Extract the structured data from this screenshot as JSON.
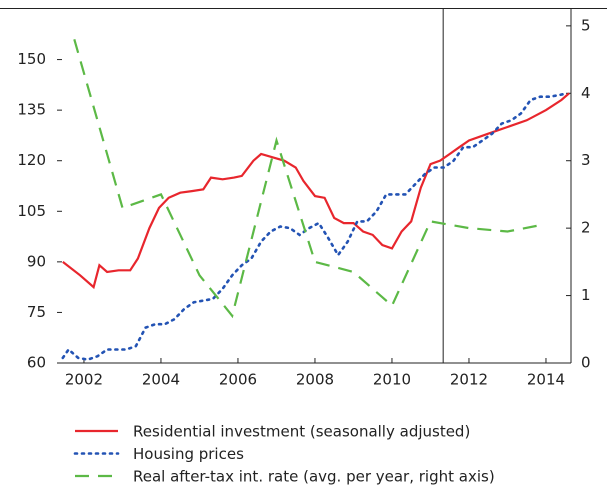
{
  "chart_data": {
    "type": "line",
    "xlim": [
      2001.3,
      2014.65
    ],
    "xticks": [
      2002,
      2004,
      2006,
      2008,
      2010,
      2012,
      2014
    ],
    "ylim": [
      60,
      165
    ],
    "yticks": [
      60,
      75,
      90,
      105,
      120,
      135,
      150
    ],
    "y2lim": [
      0,
      5.25
    ],
    "y2ticks": [
      0,
      1,
      2,
      3,
      4,
      5
    ],
    "forecast_start": 2011.33,
    "series": [
      {
        "name": "Residential investment (seasonally adjusted)",
        "color": "#e8262d",
        "dash": "solid",
        "x": [
          2001.45,
          2001.9,
          2002.25,
          2002.4,
          2002.6,
          2002.9,
          2003.2,
          2003.4,
          2003.7,
          2003.95,
          2004.2,
          2004.5,
          2004.8,
          2005.1,
          2005.3,
          2005.6,
          2005.9,
          2006.1,
          2006.4,
          2006.6,
          2006.9,
          2007.2,
          2007.5,
          2007.7,
          2008.0,
          2008.25,
          2008.5,
          2008.75,
          2009.0,
          2009.25,
          2009.5,
          2009.75,
          2010.0,
          2010.25,
          2010.5,
          2010.75,
          2011.0,
          2011.25,
          2011.5,
          2011.75,
          2012.0,
          2012.5,
          2013.0,
          2013.5,
          2014.0,
          2014.4,
          2014.6
        ],
        "values": [
          90,
          86,
          82.5,
          89,
          87,
          87.5,
          87.5,
          91,
          100,
          106,
          109,
          110.5,
          111,
          111.5,
          115,
          114.5,
          115,
          115.5,
          120,
          122,
          121,
          120,
          118,
          114,
          109.5,
          109,
          103,
          101.5,
          101.5,
          99,
          98,
          95,
          94,
          99,
          102,
          112,
          119,
          120,
          122,
          124,
          126,
          128,
          130,
          132,
          135,
          138,
          140
        ]
      },
      {
        "name": "Housing prices",
        "color": "#2353b4",
        "dash": "dotted",
        "x": [
          2001.45,
          2001.6,
          2001.85,
          2002.1,
          2002.35,
          2002.6,
          2002.85,
          2003.1,
          2003.35,
          2003.6,
          2003.85,
          2004.1,
          2004.35,
          2004.6,
          2004.85,
          2005.1,
          2005.35,
          2005.6,
          2005.85,
          2006.1,
          2006.35,
          2006.6,
          2006.85,
          2007.1,
          2007.35,
          2007.6,
          2007.85,
          2008.1,
          2008.35,
          2008.6,
          2008.85,
          2009.1,
          2009.35,
          2009.6,
          2009.85,
          2010.1,
          2010.35,
          2010.6,
          2010.85,
          2011.1,
          2011.35,
          2011.6,
          2011.85,
          2012.1,
          2012.35,
          2012.6,
          2012.85,
          2013.1,
          2013.35,
          2013.6,
          2013.85,
          2014.1,
          2014.35,
          2014.55
        ],
        "values": [
          61.5,
          64,
          61.5,
          61,
          62,
          64,
          64,
          64,
          65,
          70.5,
          71.5,
          71.5,
          73,
          76,
          78,
          78.5,
          79,
          82,
          86,
          89,
          91,
          96,
          99,
          100.5,
          100,
          98,
          100,
          101.5,
          97,
          92,
          96,
          102,
          102,
          105,
          110,
          110,
          110,
          113,
          116,
          118,
          118,
          120,
          124,
          124,
          126,
          128,
          131,
          132,
          134,
          138,
          139,
          139,
          139.5,
          140
        ]
      },
      {
        "name": "Real after-tax int. rate (avg. per year, right axis)",
        "color": "#5cb946",
        "dash": "dashed",
        "axis": "y2",
        "x": [
          2001.75,
          2003.0,
          2004.0,
          2005.0,
          2005.85,
          2007.0,
          2008.0,
          2009.0,
          2010.0,
          2011.0,
          2012.0,
          2013.0,
          2013.9
        ],
        "values": [
          4.8,
          2.3,
          2.5,
          1.3,
          0.7,
          3.3,
          1.5,
          1.35,
          0.85,
          2.1,
          2.0,
          1.95,
          2.05
        ]
      }
    ]
  }
}
